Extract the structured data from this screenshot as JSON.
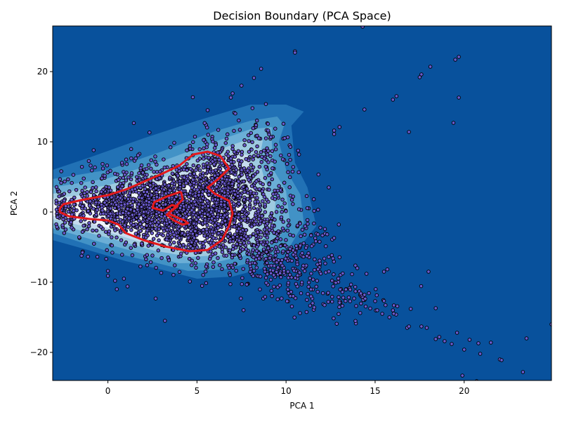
{
  "chart_data": {
    "type": "scatter",
    "title": "Decision Boundary (PCA Space)",
    "xlabel": "PCA 1",
    "ylabel": "PCA 2",
    "xlim": [
      -3.1,
      24.9
    ],
    "ylim": [
      -24.0,
      26.5
    ],
    "xticks": [
      0,
      5,
      10,
      15,
      20
    ],
    "yticks": [
      -20,
      -10,
      0,
      10,
      20
    ],
    "xtick_labels": [
      "0",
      "5",
      "10",
      "15",
      "20"
    ],
    "ytick_labels": [
      "−20",
      "−10",
      "0",
      "10",
      "20"
    ],
    "grid": false,
    "colors": {
      "background": "#08519c",
      "contour_levels": [
        "#2171b5",
        "#4292c6",
        "#6baed6",
        "#9ecae1",
        "#c6dbef",
        "#eff3ff"
      ],
      "points_fill": "#6a5acd",
      "points_edge": "#000000",
      "boundary": "#e41a1c"
    },
    "decision_boundary": [
      [
        -2.7,
        0.5
      ],
      [
        -2.5,
        1.1
      ],
      [
        -1.5,
        1.7
      ],
      [
        0,
        2.4
      ],
      [
        1,
        3.2
      ],
      [
        2,
        4.3
      ],
      [
        3,
        5.4
      ],
      [
        4,
        6.6
      ],
      [
        4.8,
        8.2
      ],
      [
        5.6,
        8.6
      ],
      [
        6.3,
        8.0
      ],
      [
        6.8,
        6.2
      ],
      [
        6.2,
        4.7
      ],
      [
        5.6,
        3.5
      ],
      [
        6.0,
        2.6
      ],
      [
        6.8,
        1.6
      ],
      [
        7.0,
        -0.2
      ],
      [
        6.8,
        -2.0
      ],
      [
        6.4,
        -4.0
      ],
      [
        5.6,
        -5.4
      ],
      [
        4.6,
        -5.6
      ],
      [
        3.2,
        -4.9
      ],
      [
        2.0,
        -4.0
      ],
      [
        1.0,
        -3.0
      ],
      [
        0.6,
        -1.8
      ],
      [
        0,
        -1.2
      ],
      [
        -1.0,
        -1.0
      ],
      [
        -2.2,
        -0.6
      ],
      [
        -2.7,
        0.0
      ],
      [
        -2.7,
        0.5
      ]
    ],
    "boundary_inner": [
      [
        4.1,
        2.9
      ],
      [
        3.3,
        2.2
      ],
      [
        2.6,
        1.4
      ],
      [
        2.5,
        0.6
      ],
      [
        3.1,
        0.2
      ],
      [
        3.6,
        1.0
      ],
      [
        3.9,
        0.8
      ],
      [
        3.4,
        -0.2
      ],
      [
        3.9,
        -0.8
      ],
      [
        4.3,
        -1.2
      ],
      [
        4.5,
        -1.6
      ],
      [
        4.2,
        -1.8
      ],
      [
        3.7,
        -1.2
      ],
      [
        3.3,
        -0.4
      ],
      [
        3.7,
        0.5
      ],
      [
        4.2,
        1.8
      ],
      [
        4.1,
        2.9
      ]
    ],
    "contours": [
      [
        [
          -3.1,
          6.0
        ],
        [
          -1,
          7.8
        ],
        [
          2,
          10.5
        ],
        [
          5,
          13.0
        ],
        [
          8,
          15.3
        ],
        [
          10,
          15.3
        ],
        [
          11,
          14.3
        ],
        [
          10.3,
          12.3
        ],
        [
          10.5,
          7.0
        ],
        [
          11.2,
          3.5
        ],
        [
          11.7,
          -2.0
        ],
        [
          10.6,
          -5.5
        ],
        [
          9,
          -7.8
        ],
        [
          7,
          -9.2
        ],
        [
          5,
          -9.5
        ],
        [
          3,
          -8.2
        ],
        [
          1,
          -7.0
        ],
        [
          -1,
          -5.5
        ],
        [
          -3.1,
          -4.0
        ]
      ],
      [
        [
          -3.1,
          4.7
        ],
        [
          0,
          6.0
        ],
        [
          3,
          8.6
        ],
        [
          6,
          11.5
        ],
        [
          8,
          13.0
        ],
        [
          9.5,
          13.6
        ],
        [
          9.9,
          12.4
        ],
        [
          9.6,
          10.0
        ],
        [
          10.0,
          6.0
        ],
        [
          10.8,
          2.5
        ],
        [
          11.0,
          -1.5
        ],
        [
          10.2,
          -5.0
        ],
        [
          8.5,
          -6.9
        ],
        [
          6.5,
          -8.2
        ],
        [
          4.5,
          -8.4
        ],
        [
          2.5,
          -7.1
        ],
        [
          0,
          -5.6
        ],
        [
          -3.1,
          -3.0
        ]
      ],
      [
        [
          -3.1,
          3.5
        ],
        [
          0,
          4.8
        ],
        [
          3,
          7.2
        ],
        [
          6,
          10.0
        ],
        [
          8,
          11.8
        ],
        [
          9.2,
          12.1
        ],
        [
          9.2,
          10.0
        ],
        [
          9.3,
          6.0
        ],
        [
          10.0,
          3.0
        ],
        [
          10.2,
          -1.0
        ],
        [
          9.5,
          -4.2
        ],
        [
          8,
          -6.0
        ],
        [
          6,
          -7.2
        ],
        [
          4,
          -7.3
        ],
        [
          2,
          -6.0
        ],
        [
          0,
          -4.6
        ],
        [
          -3.1,
          -2.3
        ]
      ],
      [
        [
          -3.1,
          2.6
        ],
        [
          0,
          3.8
        ],
        [
          3,
          6.0
        ],
        [
          6,
          8.7
        ],
        [
          7.7,
          10.2
        ],
        [
          8.7,
          10.2
        ],
        [
          8.5,
          7.5
        ],
        [
          8.8,
          4.5
        ],
        [
          9.4,
          1.5
        ],
        [
          9.3,
          -2.0
        ],
        [
          8.4,
          -4.8
        ],
        [
          6.6,
          -6.1
        ],
        [
          4.6,
          -6.4
        ],
        [
          2.6,
          -5.5
        ],
        [
          0.5,
          -4.0
        ],
        [
          -3.1,
          -1.6
        ]
      ],
      [
        [
          -3.1,
          1.9
        ],
        [
          0,
          2.9
        ],
        [
          3,
          4.8
        ],
        [
          5.5,
          7.0
        ],
        [
          7.2,
          8.5
        ],
        [
          8.0,
          8.0
        ],
        [
          7.9,
          5.5
        ],
        [
          8.3,
          3.0
        ],
        [
          8.6,
          0.0
        ],
        [
          8.2,
          -3.0
        ],
        [
          7.2,
          -4.8
        ],
        [
          5.4,
          -5.6
        ],
        [
          3.4,
          -5.3
        ],
        [
          1.5,
          -4.0
        ],
        [
          -0.5,
          -2.5
        ],
        [
          -3.1,
          -1.0
        ]
      ],
      [
        [
          -3.1,
          1.2
        ],
        [
          -1,
          1.9
        ],
        [
          1.5,
          3.0
        ],
        [
          4,
          4.8
        ],
        [
          6,
          6.4
        ],
        [
          7.0,
          6.0
        ],
        [
          7.1,
          3.5
        ],
        [
          7.5,
          1.0
        ],
        [
          7.5,
          -1.8
        ],
        [
          6.9,
          -3.6
        ],
        [
          5.5,
          -4.6
        ],
        [
          3.5,
          -4.5
        ],
        [
          1.5,
          -3.4
        ],
        [
          0,
          -2.2
        ],
        [
          -1.5,
          -1.3
        ],
        [
          -3.1,
          -0.5
        ]
      ]
    ],
    "clusters": [
      {
        "cx": 4.0,
        "cy": 0.8,
        "sx": 2.6,
        "sy": 3.4,
        "n": 1400
      },
      {
        "cx": 1.0,
        "cy": 0.6,
        "sx": 2.2,
        "sy": 1.6,
        "n": 500
      },
      {
        "cx": 6.5,
        "cy": 4.0,
        "sx": 1.2,
        "sy": 3.8,
        "n": 420
      },
      {
        "cx": 7.8,
        "cy": -3.5,
        "sx": 1.8,
        "sy": 2.8,
        "n": 320
      },
      {
        "cx": 9.8,
        "cy": -7.0,
        "sx": 1.8,
        "sy": 2.3,
        "n": 220
      },
      {
        "cx": 13.0,
        "cy": -12.0,
        "sx": 1.6,
        "sy": 1.6,
        "n": 90
      },
      {
        "cx": 8.8,
        "cy": 8.0,
        "sx": 0.9,
        "sy": 3.0,
        "n": 80
      }
    ],
    "outliers": [
      [
        10.5,
        22.9
      ],
      [
        10.5,
        22.7
      ],
      [
        8.6,
        20.4
      ],
      [
        8.2,
        19.1
      ],
      [
        7.5,
        18.0
      ],
      [
        7.0,
        16.9
      ],
      [
        6.9,
        16.3
      ],
      [
        5.6,
        14.5
      ],
      [
        14.3,
        26.4
      ],
      [
        19.7,
        22.1
      ],
      [
        19.5,
        21.7
      ],
      [
        18.1,
        20.7
      ],
      [
        17.6,
        19.6
      ],
      [
        17.5,
        19.2
      ],
      [
        16.2,
        16.5
      ],
      [
        16.0,
        16.0
      ],
      [
        19.7,
        16.3
      ],
      [
        14.4,
        14.6
      ],
      [
        13.0,
        12.1
      ],
      [
        12.7,
        11.6
      ],
      [
        12.7,
        11.1
      ],
      [
        16.9,
        11.4
      ],
      [
        19.4,
        12.7
      ],
      [
        12.4,
        3.5
      ],
      [
        12.7,
        -3.7
      ],
      [
        14.0,
        -8.0
      ],
      [
        15.5,
        -8.5
      ],
      [
        18.0,
        -8.5
      ],
      [
        17.0,
        -13.8
      ],
      [
        18.4,
        -13.7
      ],
      [
        15.8,
        -15.0
      ],
      [
        16.8,
        -16.5
      ],
      [
        16.9,
        -16.3
      ],
      [
        17.6,
        -16.3
      ],
      [
        17.9,
        -16.5
      ],
      [
        18.4,
        -18.1
      ],
      [
        18.6,
        -17.8
      ],
      [
        18.9,
        -18.4
      ],
      [
        19.3,
        -18.8
      ],
      [
        19.6,
        -17.2
      ],
      [
        20.3,
        -18.2
      ],
      [
        20.8,
        -18.7
      ],
      [
        21.5,
        -18.6
      ],
      [
        20.0,
        -19.6
      ],
      [
        20.9,
        -20.2
      ],
      [
        22.0,
        -21.0
      ],
      [
        22.1,
        -21.1
      ],
      [
        23.5,
        -18.0
      ],
      [
        24.9,
        -16.0
      ],
      [
        19.9,
        -23.3
      ],
      [
        20.7,
        -24.1
      ],
      [
        23.3,
        -22.8
      ],
      [
        3.2,
        -15.5
      ],
      [
        0.5,
        -11.0
      ],
      [
        1.1,
        -10.6
      ],
      [
        0.4,
        -9.8
      ],
      [
        0.9,
        -9.5
      ],
      [
        0.0,
        -8.4
      ],
      [
        0.0,
        -9.1
      ],
      [
        4.6,
        -9.9
      ],
      [
        13.9,
        -11.3
      ],
      [
        14.2,
        -11.6
      ],
      [
        14.4,
        -11.8
      ],
      [
        15.0,
        -12.7
      ],
      [
        16.0,
        -14.0
      ],
      [
        15.4,
        -14.5
      ]
    ]
  }
}
